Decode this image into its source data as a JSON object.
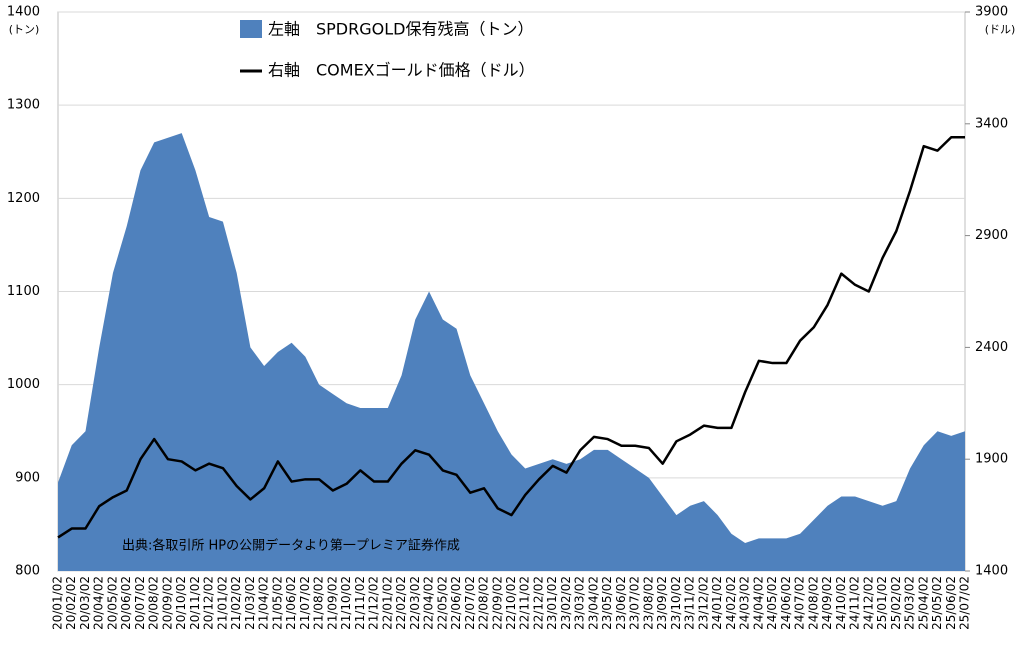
{
  "chart_data": {
    "type": "area-line",
    "y_label": "(トン)",
    "y2_label": "(ドル)",
    "annotation": "出典:各取引所 HPの公開データより第一プレミア証券作成",
    "categories": [
      "20/01/02",
      "20/02/02",
      "20/03/02",
      "20/04/02",
      "20/05/02",
      "20/06/02",
      "20/07/02",
      "20/08/02",
      "20/09/02",
      "20/10/02",
      "20/11/02",
      "20/12/02",
      "21/01/02",
      "21/02/02",
      "21/03/02",
      "21/04/02",
      "21/05/02",
      "21/06/02",
      "21/07/02",
      "21/08/02",
      "21/09/02",
      "21/10/02",
      "21/11/02",
      "21/12/02",
      "22/01/02",
      "22/02/02",
      "22/03/02",
      "22/04/02",
      "22/05/02",
      "22/06/02",
      "22/07/02",
      "22/08/02",
      "22/09/02",
      "22/10/02",
      "22/11/02",
      "22/12/02",
      "23/01/02",
      "23/02/02",
      "23/03/02",
      "23/04/02",
      "23/05/02",
      "23/06/02",
      "23/07/02",
      "23/08/02",
      "23/09/02",
      "23/10/02",
      "23/11/02",
      "23/12/02",
      "24/01/02",
      "24/02/02",
      "24/03/02",
      "24/04/02",
      "24/05/02",
      "24/06/02",
      "24/07/02",
      "24/08/02",
      "24/09/02",
      "24/10/02",
      "24/11/02",
      "24/12/02",
      "25/01/02",
      "25/02/02",
      "25/03/02",
      "25/04/02",
      "25/05/02",
      "25/06/02",
      "25/07/02"
    ],
    "series": [
      {
        "name": "左軸　SPDRGOLD保有残高（トン）",
        "color": "#4f81bd",
        "kind": "area",
        "values": [
          895,
          935,
          950,
          1040,
          1120,
          1170,
          1230,
          1260,
          1265,
          1270,
          1230,
          1180,
          1175,
          1120,
          1040,
          1020,
          1035,
          1045,
          1030,
          1000,
          990,
          980,
          975,
          975,
          975,
          1010,
          1070,
          1100,
          1070,
          1060,
          1010,
          980,
          950,
          925,
          910,
          915,
          920,
          915,
          920,
          930,
          930,
          920,
          910,
          900,
          880,
          860,
          870,
          875,
          860,
          840,
          830,
          835,
          835,
          835,
          840,
          855,
          870,
          880,
          880,
          875,
          870,
          875,
          910,
          935,
          950,
          945,
          950
        ]
      },
      {
        "name": "右軸　COMEXゴールド価格（ドル）",
        "color": "#000000",
        "kind": "line",
        "axis": "y2",
        "values": [
          1550,
          1590,
          1590,
          1690,
          1730,
          1760,
          1900,
          1990,
          1900,
          1890,
          1850,
          1880,
          1860,
          1780,
          1720,
          1770,
          1890,
          1800,
          1810,
          1810,
          1760,
          1790,
          1850,
          1800,
          1800,
          1880,
          1940,
          1920,
          1850,
          1830,
          1750,
          1770,
          1680,
          1650,
          1740,
          1810,
          1870,
          1840,
          1940,
          2000,
          1990,
          1960,
          1960,
          1950,
          1880,
          1980,
          2010,
          2050,
          2040,
          2040,
          2200,
          2340,
          2330,
          2330,
          2430,
          2490,
          2590,
          2730,
          2680,
          2650,
          2800,
          2920,
          3100,
          3300,
          3280,
          3340,
          3340
        ]
      }
    ],
    "ylim": [
      800,
      1400
    ],
    "yticks": [
      800,
      900,
      1000,
      1100,
      1200,
      1300,
      1400
    ],
    "y2lim": [
      1400,
      3900
    ],
    "y2ticks": [
      1400,
      1900,
      2400,
      2900,
      3400,
      3900
    ],
    "grid": true
  }
}
